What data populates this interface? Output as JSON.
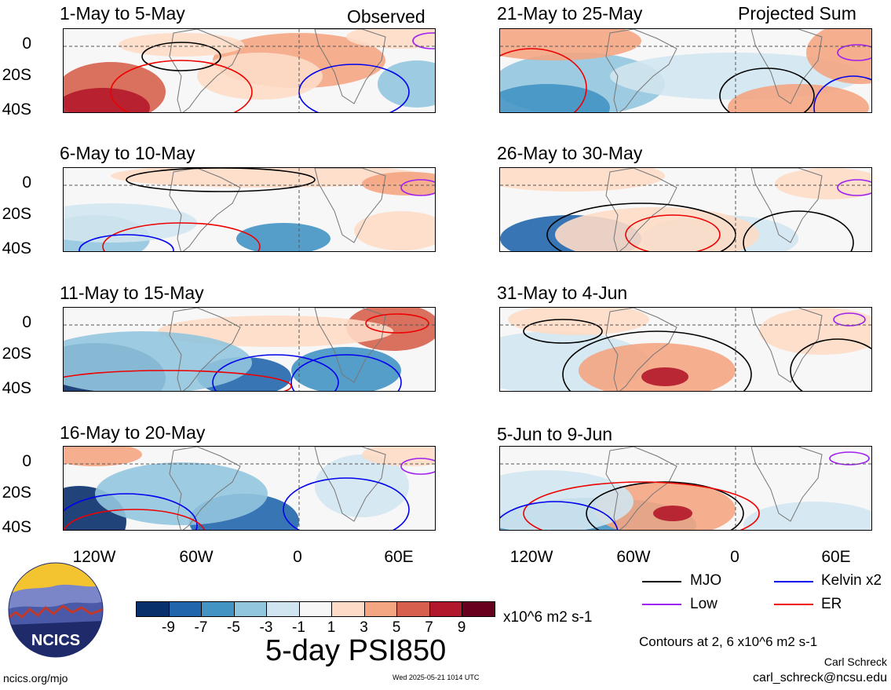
{
  "panels": [
    {
      "title": "1-May to 5-May",
      "tag": "Observed"
    },
    {
      "title": "6-May to 10-May",
      "tag": ""
    },
    {
      "title": "11-May to 15-May",
      "tag": ""
    },
    {
      "title": "16-May to 20-May",
      "tag": ""
    },
    {
      "title": "21-May to 25-May",
      "tag": "Projected Sum"
    },
    {
      "title": "26-May to 30-May",
      "tag": ""
    },
    {
      "title": "31-May to 4-Jun",
      "tag": ""
    },
    {
      "title": "5-Jun to 9-Jun",
      "tag": ""
    }
  ],
  "y_ticks": [
    "0",
    "20S",
    "40S"
  ],
  "x_ticks": [
    "120W",
    "60W",
    "0",
    "60E"
  ],
  "colorbar": {
    "labels": [
      "-9",
      "-7",
      "-5",
      "-3",
      "-1",
      "1",
      "3",
      "5",
      "7",
      "9"
    ],
    "unit": "x10^6 m2 s-1",
    "colors": [
      "#08306b",
      "#2166ac",
      "#4393c3",
      "#92c5de",
      "#d1e5f0",
      "#f7f7f7",
      "#fddbc7",
      "#f4a582",
      "#d6604d",
      "#b2182b",
      "#67001f"
    ]
  },
  "legend": [
    {
      "label": "MJO",
      "color": "#000000"
    },
    {
      "label": "Kelvin x2",
      "color": "#0000ee"
    },
    {
      "label": "Low",
      "color": "#a020f0"
    },
    {
      "label": "ER",
      "color": "#ee0000"
    }
  ],
  "main_title": "5-day PSI850",
  "contours_note": "Contours at 2, 6 x10^6 m2 s-1",
  "author": "Carl Schreck",
  "email": "carl_schreck@ncsu.edu",
  "site": "ncics.org/mjo",
  "timestamp": "Wed 2025-05-21 1014 UTC",
  "logo_text": "NCICS"
}
